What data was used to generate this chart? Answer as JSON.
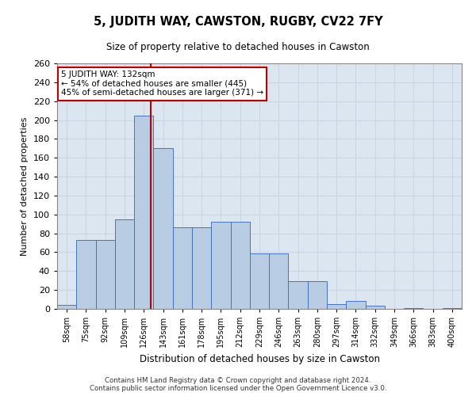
{
  "title": "5, JUDITH WAY, CAWSTON, RUGBY, CV22 7FY",
  "subtitle": "Size of property relative to detached houses in Cawston",
  "xlabel": "Distribution of detached houses by size in Cawston",
  "ylabel": "Number of detached properties",
  "footer_line1": "Contains HM Land Registry data © Crown copyright and database right 2024.",
  "footer_line2": "Contains public sector information licensed under the Open Government Licence v3.0.",
  "bar_labels": [
    "58sqm",
    "75sqm",
    "92sqm",
    "109sqm",
    "126sqm",
    "143sqm",
    "161sqm",
    "178sqm",
    "195sqm",
    "212sqm",
    "229sqm",
    "246sqm",
    "263sqm",
    "280sqm",
    "297sqm",
    "314sqm",
    "332sqm",
    "349sqm",
    "366sqm",
    "383sqm",
    "400sqm"
  ],
  "bar_values": [
    4,
    73,
    73,
    95,
    205,
    170,
    86,
    86,
    92,
    92,
    59,
    59,
    29,
    29,
    5,
    8,
    3,
    0,
    1,
    0,
    1
  ],
  "bar_color": "#b8cce4",
  "bar_edge_color": "#4472c4",
  "grid_color": "#c8d4e3",
  "background_color": "#dce6f1",
  "annotation_text": "5 JUDITH WAY: 132sqm\n← 54% of detached houses are smaller (445)\n45% of semi-detached houses are larger (371) →",
  "vline_color": "#c00000",
  "annotation_box_color": "#ffffff",
  "annotation_box_edge_color": "#c00000",
  "ylim": [
    0,
    260
  ],
  "yticks": [
    0,
    20,
    40,
    60,
    80,
    100,
    120,
    140,
    160,
    180,
    200,
    220,
    240,
    260
  ]
}
